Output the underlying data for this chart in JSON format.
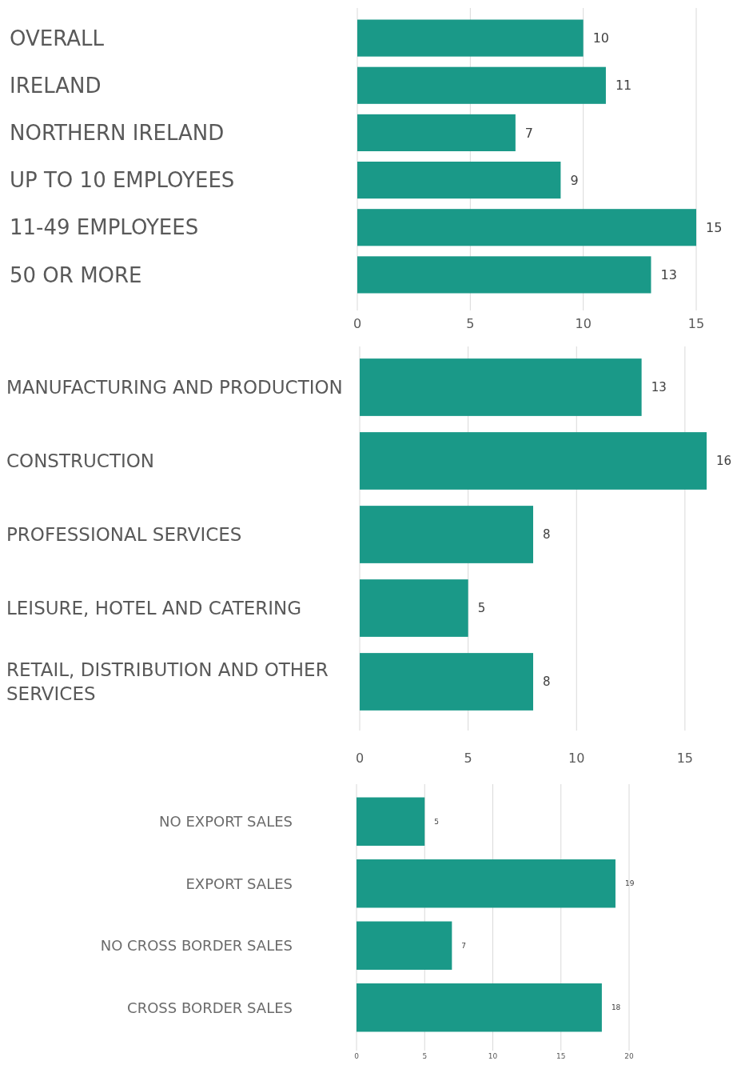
{
  "chart_data": [
    {
      "type": "bar",
      "orientation": "horizontal",
      "categories": [
        "OVERALL",
        "IRELAND",
        "NORTHERN IRELAND",
        "UP TO 10 EMPLOYEES",
        "11-49 EMPLOYEES",
        "50 OR MORE"
      ],
      "values": [
        10,
        11,
        7,
        9,
        15,
        13
      ],
      "color": "#1a9988",
      "xlim": [
        0,
        15
      ],
      "xticks": [
        0,
        5,
        10,
        15
      ],
      "grid": "x",
      "data_labels": true
    },
    {
      "type": "bar",
      "orientation": "horizontal",
      "categories": [
        "MANUFACTURING AND PRODUCTION",
        "CONSTRUCTION",
        "PROFESSIONAL SERVICES",
        "LEISURE, HOTEL AND CATERING",
        "RETAIL, DISTRIBUTION AND OTHER SERVICES"
      ],
      "values": [
        13,
        16,
        8,
        5,
        8
      ],
      "color": "#1a9988",
      "xlim": [
        0,
        16
      ],
      "xticks": [
        0,
        5,
        10,
        15
      ],
      "grid": "x",
      "data_labels": true
    },
    {
      "type": "bar",
      "orientation": "horizontal",
      "categories": [
        "NO EXPORT SALES",
        "EXPORT SALES",
        "NO CROSS BORDER SALES",
        "CROSS BORDER SALES"
      ],
      "values": [
        5,
        19,
        7,
        18
      ],
      "color": "#1a9988",
      "xlim": [
        0,
        20
      ],
      "xticks": [
        0,
        5,
        10,
        15,
        20
      ],
      "grid": "x",
      "data_labels": true
    }
  ]
}
